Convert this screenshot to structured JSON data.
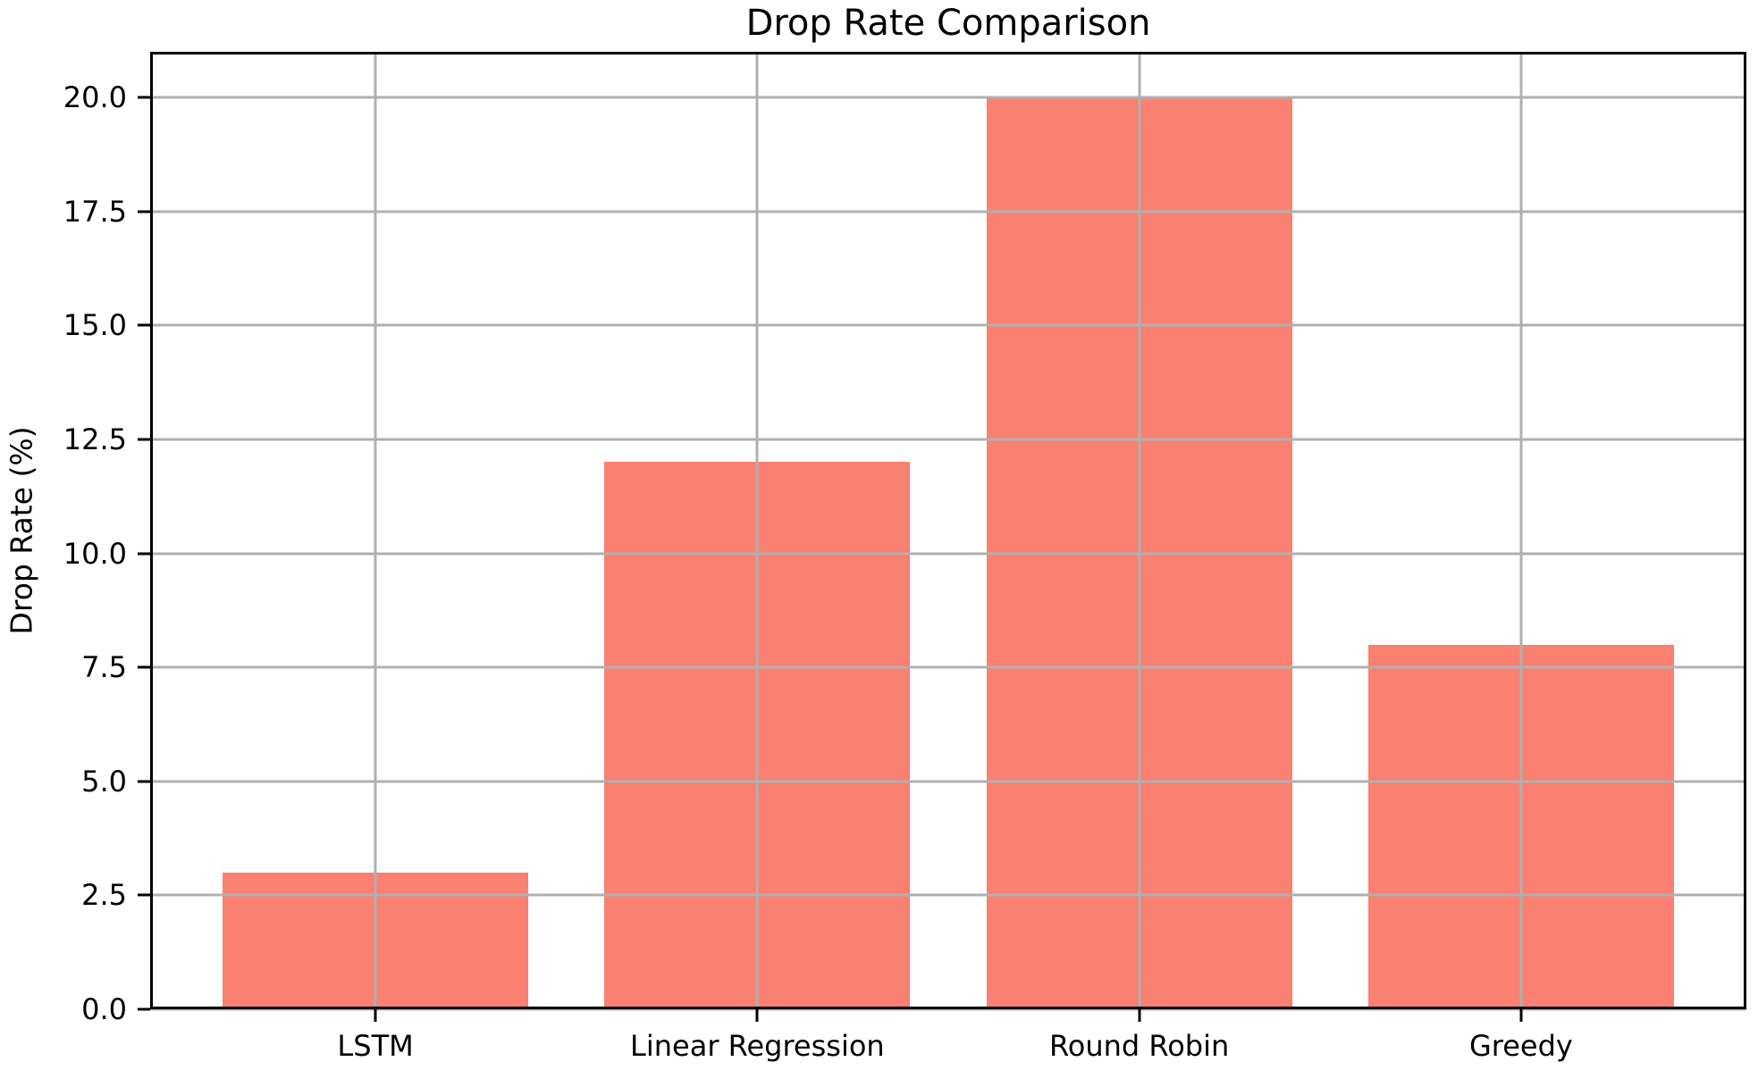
{
  "chart_data": {
    "type": "bar",
    "title": "Drop Rate Comparison",
    "xlabel": "",
    "ylabel": "Drop Rate (%)",
    "categories": [
      "LSTM",
      "Linear Regression",
      "Round Robin",
      "Greedy"
    ],
    "values": [
      3,
      12,
      20,
      8
    ],
    "ytick_values": [
      0,
      2.5,
      5,
      7.5,
      10,
      12.5,
      15,
      17.5,
      20
    ],
    "ytick_labels": [
      "0.0",
      "2.5",
      "5.0",
      "7.5",
      "10.0",
      "12.5",
      "15.0",
      "17.5",
      "20.0"
    ],
    "ylim": [
      0,
      21
    ],
    "xlim": [
      -0.59,
      3.59
    ],
    "bar_width": 0.8,
    "bar_color": "#FA8072",
    "grid": true,
    "grid_color": "#b0b0b0",
    "grid_above_bars": true,
    "axis_color": "#000000",
    "text_color": "#000000",
    "background_color": "#ffffff",
    "legend": "none"
  }
}
